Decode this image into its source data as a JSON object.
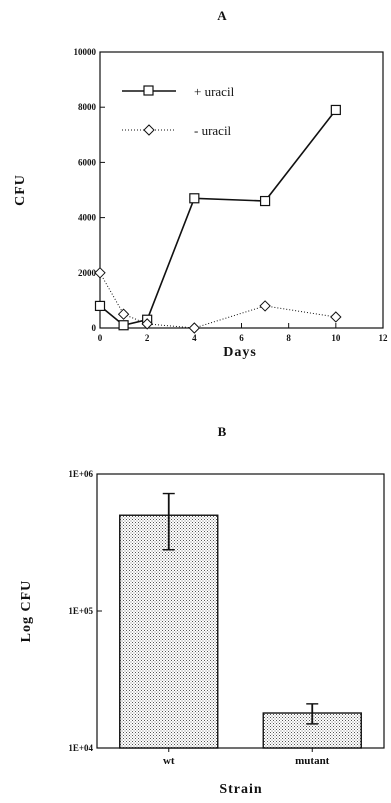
{
  "chart_data": [
    {
      "type": "line",
      "title": "A",
      "xlabel": "Days",
      "ylabel": "CFU",
      "xlim": [
        0,
        12
      ],
      "ylim": [
        0,
        10000
      ],
      "x_ticks": [
        "0",
        "2",
        "4",
        "6",
        "8",
        "10",
        "12"
      ],
      "y_ticks": [
        "0",
        "2000",
        "4000",
        "6000",
        "8000",
        "10000"
      ],
      "grid": false,
      "legend_position": "top-left",
      "series": [
        {
          "name": "+ uracil",
          "marker": "square",
          "line_style": "solid",
          "color": "#111111",
          "points": [
            [
              0,
              800
            ],
            [
              1,
              100
            ],
            [
              2,
              300
            ],
            [
              4,
              4700
            ],
            [
              7,
              4600
            ],
            [
              10,
              7900
            ]
          ]
        },
        {
          "name": "- uracil",
          "marker": "diamond",
          "line_style": "dotted",
          "color": "#111111",
          "points": [
            [
              0,
              2000
            ],
            [
              1,
              500
            ],
            [
              2,
              150
            ],
            [
              4,
              0
            ],
            [
              7,
              800
            ],
            [
              10,
              400
            ]
          ]
        }
      ]
    },
    {
      "type": "bar",
      "title": "B",
      "xlabel": "Strain",
      "ylabel": "Log CFU",
      "scale": "log",
      "ylim": [
        10000,
        1000000
      ],
      "y_ticks": [
        "1E+04",
        "1E+05",
        "1E+06"
      ],
      "categories": [
        "wt",
        "mutant"
      ],
      "values": [
        500000,
        18000
      ],
      "errors_up": [
        720000,
        21000
      ],
      "errors_down": [
        280000,
        15000
      ],
      "bar_pattern": "stipple",
      "grid": false
    }
  ]
}
